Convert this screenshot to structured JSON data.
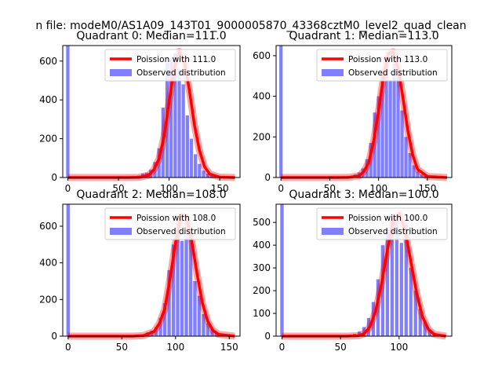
{
  "figure": {
    "suptitle": "n file: modeM0/AS1A09_143T01_9000005870_43368cztM0_level2_quad_clean"
  },
  "colors": {
    "hist": "#0000ff",
    "poisson": "#ff0000",
    "background": "#ffffff"
  },
  "chart_data": [
    {
      "type": "bar",
      "title": "Quadrant 0: Median=111.0",
      "xlim": [
        -5,
        170
      ],
      "ylim": [
        0,
        680
      ],
      "xticks": [
        0,
        50,
        100,
        150
      ],
      "yticks": [
        0,
        200,
        400,
        600
      ],
      "bin_width": 3.3,
      "legend": {
        "placement": "upper-right",
        "entries": [
          "Poission with 111.0",
          "Observed distribution"
        ]
      },
      "spike": {
        "x": 0,
        "value": 680
      },
      "series": [
        {
          "name": "Observed distribution",
          "kind": "histogram",
          "x": [
            66,
            70,
            74,
            78,
            82,
            86,
            90,
            94,
            98,
            102,
            106,
            110,
            114,
            118,
            122,
            126,
            130,
            134,
            138,
            142,
            146,
            150,
            154,
            158
          ],
          "values": [
            5,
            10,
            20,
            25,
            40,
            80,
            150,
            360,
            590,
            610,
            640,
            560,
            480,
            320,
            200,
            120,
            70,
            35,
            20,
            10,
            5,
            3,
            2,
            1
          ]
        },
        {
          "name": "Poission with 111.0",
          "kind": "line",
          "x": [
            0,
            60,
            70,
            80,
            85,
            90,
            95,
            100,
            105,
            110,
            115,
            120,
            125,
            130,
            135,
            140,
            150,
            165
          ],
          "values": [
            0,
            0,
            1,
            12,
            40,
            96,
            210,
            390,
            560,
            650,
            600,
            450,
            270,
            140,
            55,
            18,
            2,
            0
          ]
        }
      ]
    },
    {
      "type": "bar",
      "title": "Quadrant 1: Median=113.0",
      "xlim": [
        -5,
        175
      ],
      "ylim": [
        0,
        650
      ],
      "xticks": [
        0,
        50,
        100,
        150
      ],
      "yticks": [
        0,
        200,
        400,
        600
      ],
      "bin_width": 3.4,
      "legend": {
        "placement": "upper-right",
        "entries": [
          "Poission with 113.0",
          "Observed distribution"
        ]
      },
      "spike": {
        "x": 0,
        "value": 650
      },
      "series": [
        {
          "name": "Observed distribution",
          "kind": "histogram",
          "x": [
            68,
            72,
            76,
            80,
            84,
            88,
            92,
            96,
            100,
            104,
            108,
            112,
            116,
            120,
            124,
            128,
            132,
            136,
            140,
            144,
            148,
            152,
            156,
            160
          ],
          "values": [
            3,
            8,
            15,
            25,
            45,
            90,
            170,
            320,
            400,
            520,
            600,
            480,
            560,
            500,
            330,
            200,
            120,
            60,
            30,
            15,
            8,
            4,
            2,
            1
          ]
        },
        {
          "name": "Poission with 113.0",
          "kind": "line",
          "x": [
            0,
            60,
            70,
            80,
            85,
            90,
            95,
            100,
            105,
            110,
            115,
            120,
            125,
            130,
            135,
            140,
            150,
            170
          ],
          "values": [
            0,
            0,
            1,
            8,
            30,
            75,
            180,
            330,
            500,
            610,
            620,
            540,
            390,
            230,
            110,
            40,
            5,
            0
          ]
        }
      ]
    },
    {
      "type": "bar",
      "title": "Quadrant 2: Median=108.0",
      "xlim": [
        -5,
        160
      ],
      "ylim": [
        0,
        720
      ],
      "xticks": [
        0,
        50,
        100,
        150
      ],
      "yticks": [
        0,
        200,
        400,
        600
      ],
      "bin_width": 3.2,
      "legend": {
        "placement": "upper-right",
        "entries": [
          "Poission with 108.0",
          "Observed distribution"
        ]
      },
      "spike": {
        "x": 0,
        "value": 720
      },
      "series": [
        {
          "name": "Observed distribution",
          "kind": "histogram",
          "x": [
            66,
            70,
            74,
            78,
            82,
            86,
            90,
            94,
            98,
            102,
            106,
            110,
            114,
            118,
            122,
            126,
            130,
            134,
            138,
            142,
            146,
            150
          ],
          "values": [
            5,
            10,
            20,
            30,
            50,
            100,
            180,
            360,
            500,
            580,
            520,
            540,
            560,
            300,
            220,
            120,
            70,
            40,
            20,
            10,
            5,
            2
          ]
        },
        {
          "name": "Poission with 108.0",
          "kind": "line",
          "x": [
            0,
            60,
            70,
            80,
            85,
            90,
            95,
            100,
            105,
            110,
            115,
            120,
            125,
            130,
            135,
            140,
            155
          ],
          "values": [
            0,
            0,
            3,
            25,
            70,
            150,
            320,
            510,
            660,
            650,
            520,
            340,
            180,
            80,
            30,
            10,
            0
          ]
        }
      ]
    },
    {
      "type": "bar",
      "title": "Quadrant 3: Median=100.0",
      "xlim": [
        -5,
        145
      ],
      "ylim": [
        0,
        580
      ],
      "xticks": [
        0,
        50,
        100
      ],
      "yticks": [
        0,
        100,
        200,
        300,
        400,
        500
      ],
      "bin_width": 2.9,
      "legend": {
        "placement": "upper-right",
        "entries": [
          "Poission with 100.0",
          "Observed distribution"
        ]
      },
      "spike": {
        "x": 0,
        "value": 580
      },
      "series": [
        {
          "name": "Observed distribution",
          "kind": "histogram",
          "x": [
            58,
            62,
            66,
            70,
            74,
            78,
            82,
            86,
            90,
            94,
            98,
            102,
            106,
            110,
            114,
            118,
            122,
            126,
            130,
            134
          ],
          "values": [
            5,
            10,
            20,
            40,
            80,
            150,
            250,
            400,
            470,
            520,
            530,
            410,
            490,
            300,
            200,
            120,
            60,
            30,
            15,
            5
          ]
        },
        {
          "name": "Poission with 100.0",
          "kind": "line",
          "x": [
            0,
            55,
            65,
            70,
            75,
            80,
            85,
            90,
            95,
            100,
            105,
            110,
            115,
            120,
            125,
            130,
            140
          ],
          "values": [
            0,
            0,
            2,
            10,
            40,
            110,
            230,
            380,
            500,
            540,
            470,
            330,
            190,
            85,
            30,
            8,
            0
          ]
        }
      ]
    }
  ]
}
